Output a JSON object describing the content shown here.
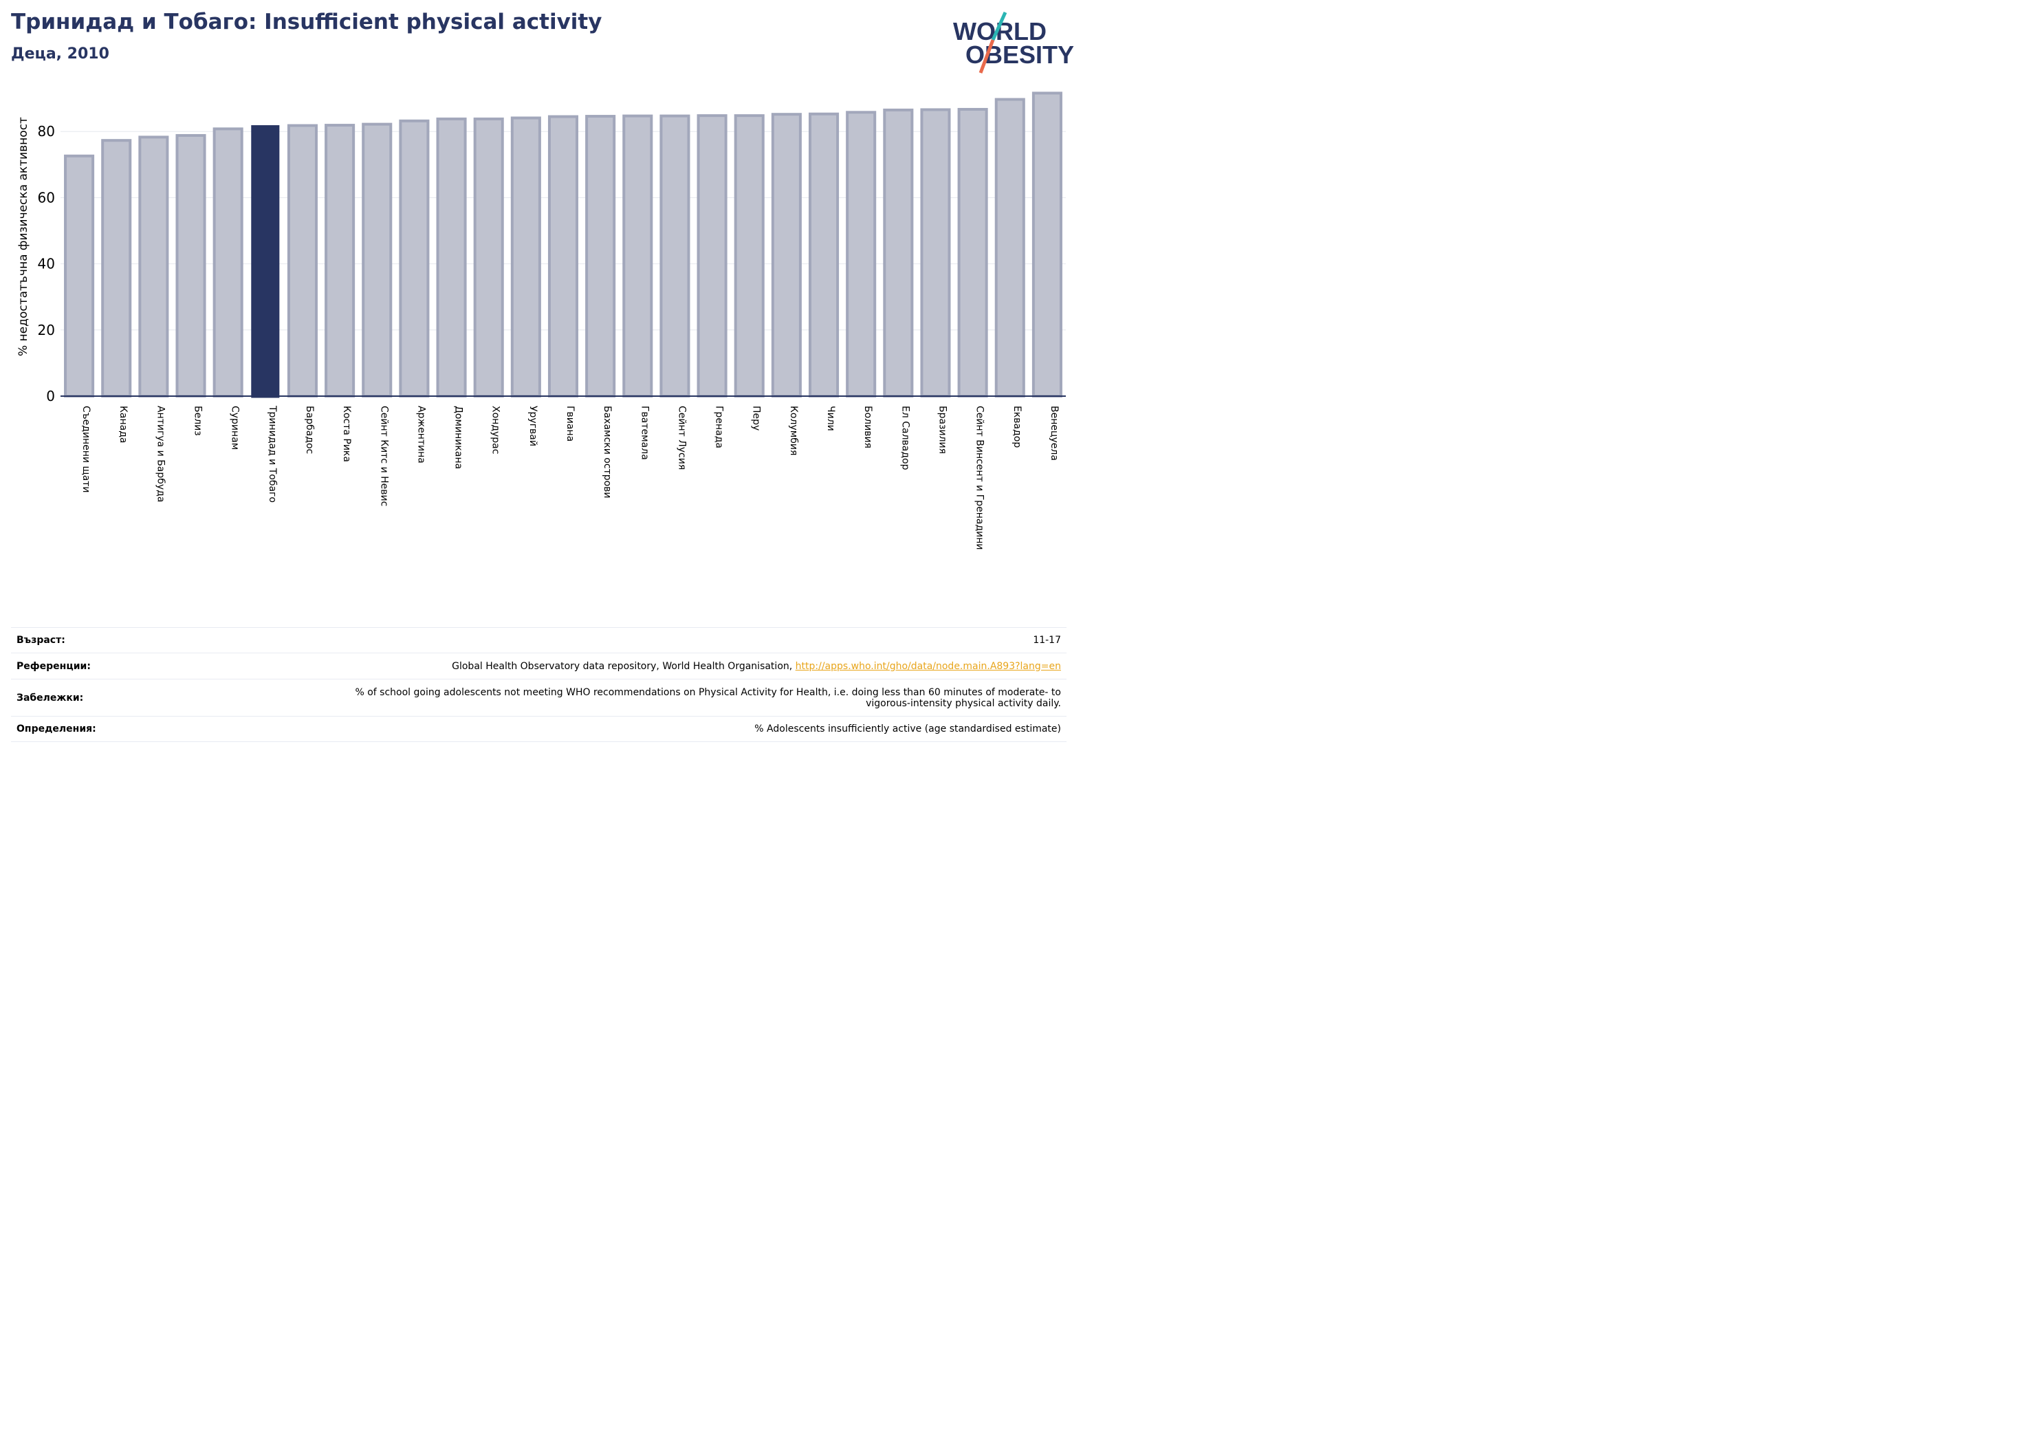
{
  "header": {
    "title": "Тринидад и Тобаго: Insufficient physical activity",
    "subtitle": "Деца, 2010"
  },
  "logo": {
    "line1": "WORLD",
    "line2": "OBESITY",
    "colors": {
      "text": "#283562",
      "slash_top": "#2bb5b3",
      "slash_bottom": "#e96a4c"
    }
  },
  "chart_data": {
    "type": "bar",
    "title": "Тринидад и Тобаго: Insufficient physical activity",
    "subtitle": "Деца, 2010",
    "xlabel": "",
    "ylabel": "% недостатъчна физическа активност",
    "ylim": [
      0,
      95
    ],
    "yticks": [
      0,
      20,
      40,
      60,
      80
    ],
    "grid": true,
    "highlight": "Тринидад и Тобаго",
    "colors": {
      "bar": "#bfc2cf",
      "bar_edge": "#a2a7bb",
      "highlight": "#283562"
    },
    "categories": [
      "Съединени щати",
      "Канада",
      "Антигуа и Барбуда",
      "Белиз",
      "Суринам",
      "Тринидад и Тобаго",
      "Барбадос",
      "Коста Рика",
      "Сейнт Китс и Невис",
      "Аржентина",
      "Доминикана",
      "Хондурас",
      "Уругвай",
      "Гвиана",
      "Бахамски острови",
      "Гватемала",
      "Сейнт Лусия",
      "Гренада",
      "Перу",
      "Колумбия",
      "Чили",
      "Боливия",
      "Ел Салвадор",
      "Бразилия",
      "Сейнт Винсент и Гренадини",
      "Еквадор",
      "Венецуела"
    ],
    "values": [
      72.6,
      77.3,
      78.3,
      78.8,
      80.8,
      81.8,
      81.8,
      81.9,
      82.2,
      83.2,
      83.8,
      83.8,
      84.1,
      84.5,
      84.6,
      84.7,
      84.7,
      84.8,
      84.8,
      85.2,
      85.3,
      85.8,
      86.5,
      86.6,
      86.7,
      89.7,
      91.6
    ]
  },
  "meta": [
    {
      "label": "Възраст:",
      "value": "11-17",
      "link": ""
    },
    {
      "label": "Референции:",
      "value": "Global Health Observatory data repository, World Health Organisation, ",
      "link": "http://apps.who.int/gho/data/node.main.A893?lang=en"
    },
    {
      "label": "Забележки:",
      "value": "% of school going adolescents not meeting WHO recommendations on Physical Activity for Health, i.e. doing less than 60 minutes of moderate- to vigorous-intensity physical activity daily.",
      "link": ""
    },
    {
      "label": "Определения:",
      "value": "% Adolescents insufficiently active (age standardised estimate)",
      "link": ""
    }
  ]
}
